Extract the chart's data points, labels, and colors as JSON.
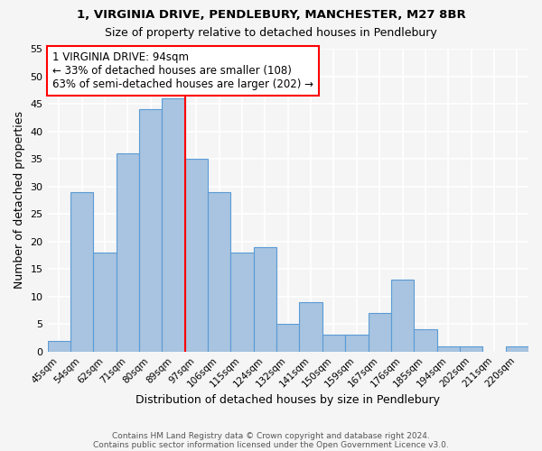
{
  "title1": "1, VIRGINIA DRIVE, PENDLEBURY, MANCHESTER, M27 8BR",
  "title2": "Size of property relative to detached houses in Pendlebury",
  "xlabel": "Distribution of detached houses by size in Pendlebury",
  "ylabel": "Number of detached properties",
  "bar_labels": [
    "45sqm",
    "54sqm",
    "62sqm",
    "71sqm",
    "80sqm",
    "89sqm",
    "97sqm",
    "106sqm",
    "115sqm",
    "124sqm",
    "132sqm",
    "141sqm",
    "150sqm",
    "159sqm",
    "167sqm",
    "176sqm",
    "185sqm",
    "194sqm",
    "202sqm",
    "211sqm",
    "220sqm"
  ],
  "bar_values": [
    2,
    29,
    18,
    36,
    44,
    46,
    35,
    29,
    18,
    19,
    5,
    9,
    3,
    3,
    7,
    13,
    4,
    1,
    1,
    0,
    1
  ],
  "bar_color": "#a8c4e0",
  "bar_edge_color": "#5b9bd5",
  "highlight_line_color": "red",
  "annotation_text": "1 VIRGINIA DRIVE: 94sqm\n← 33% of detached houses are smaller (108)\n63% of semi-detached houses are larger (202) →",
  "annotation_box_color": "white",
  "annotation_box_edge_color": "red",
  "ylim": [
    0,
    55
  ],
  "yticks": [
    0,
    5,
    10,
    15,
    20,
    25,
    30,
    35,
    40,
    45,
    50,
    55
  ],
  "footer1": "Contains HM Land Registry data © Crown copyright and database right 2024.",
  "footer2": "Contains public sector information licensed under the Open Government Licence v3.0.",
  "bg_color": "#f5f5f5"
}
